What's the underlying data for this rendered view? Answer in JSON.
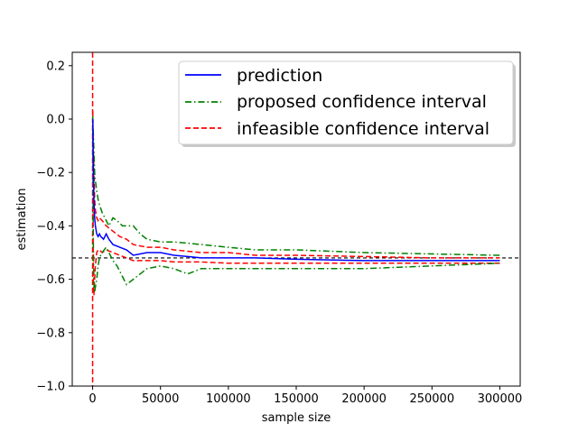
{
  "chart_data": {
    "type": "line",
    "title": "",
    "xlabel": "sample size",
    "ylabel": "estimation",
    "xlim": [
      -15000,
      315000
    ],
    "ylim": [
      -1.0,
      0.25
    ],
    "xticks": [
      0,
      50000,
      100000,
      150000,
      200000,
      250000,
      300000
    ],
    "xtick_labels": [
      "0",
      "50000",
      "100000",
      "150000",
      "200000",
      "250000",
      "300000"
    ],
    "yticks": [
      -1.0,
      -0.8,
      -0.6,
      -0.4,
      -0.2,
      0.0,
      0.2
    ],
    "ytick_labels": [
      "−1.0",
      "−0.8",
      "−0.6",
      "−0.4",
      "−0.2",
      "0.0",
      "0.2"
    ],
    "grid": false,
    "legend_position": "upper right",
    "colors": {
      "prediction": "#0000ff",
      "proposed": "#008000",
      "infeasible": "#ff0000",
      "reference": "#000000"
    },
    "reference_line": {
      "y": -0.52
    },
    "vertical_line": {
      "x": 0
    },
    "series": [
      {
        "name": "prediction",
        "style": "solid",
        "x": [
          100,
          500,
          1000,
          1500,
          2000,
          3000,
          4000,
          5000,
          6000,
          8000,
          10000,
          12000,
          15000,
          20000,
          25000,
          30000,
          35000,
          40000,
          50000,
          60000,
          70000,
          80000,
          90000,
          100000,
          120000,
          150000,
          200000,
          250000,
          300000
        ],
        "values": [
          0.0,
          -0.15,
          -0.3,
          -0.37,
          -0.4,
          -0.43,
          -0.44,
          -0.43,
          -0.44,
          -0.45,
          -0.43,
          -0.45,
          -0.47,
          -0.48,
          -0.49,
          -0.51,
          -0.505,
          -0.5,
          -0.5,
          -0.51,
          -0.515,
          -0.52,
          -0.52,
          -0.52,
          -0.52,
          -0.525,
          -0.53,
          -0.53,
          -0.53
        ]
      },
      {
        "name": "proposed confidence interval",
        "style": "dashdot",
        "upper": {
          "x": [
            100,
            500,
            1000,
            1500,
            2000,
            3000,
            4000,
            5000,
            7000,
            10000,
            12000,
            15000,
            18000,
            22000,
            25000,
            30000,
            35000,
            40000,
            50000,
            60000,
            70000,
            80000,
            100000,
            120000,
            150000,
            200000,
            250000,
            300000
          ],
          "values": [
            0.01,
            -0.05,
            -0.12,
            -0.2,
            -0.23,
            -0.27,
            -0.3,
            -0.32,
            -0.35,
            -0.38,
            -0.4,
            -0.37,
            -0.38,
            -0.4,
            -0.4,
            -0.4,
            -0.43,
            -0.45,
            -0.46,
            -0.46,
            -0.465,
            -0.47,
            -0.48,
            -0.49,
            -0.49,
            -0.5,
            -0.505,
            -0.51
          ]
        },
        "lower": {
          "x": [
            100,
            500,
            1000,
            1500,
            2000,
            3000,
            4000,
            5000,
            7000,
            10000,
            12000,
            15000,
            18000,
            22000,
            25000,
            30000,
            35000,
            40000,
            50000,
            60000,
            70000,
            80000,
            100000,
            120000,
            150000,
            200000,
            250000,
            300000
          ],
          "values": [
            -0.02,
            -0.45,
            -0.62,
            -0.65,
            -0.63,
            -0.6,
            -0.55,
            -0.52,
            -0.5,
            -0.48,
            -0.5,
            -0.53,
            -0.55,
            -0.59,
            -0.62,
            -0.6,
            -0.58,
            -0.56,
            -0.55,
            -0.56,
            -0.58,
            -0.56,
            -0.56,
            -0.56,
            -0.56,
            -0.56,
            -0.55,
            -0.54
          ]
        }
      },
      {
        "name": "infeasible confidence interval",
        "style": "dashed",
        "upper": {
          "x": [
            100,
            500,
            1000,
            1500,
            2000,
            3000,
            4000,
            5000,
            7000,
            10000,
            15000,
            20000,
            25000,
            30000,
            40000,
            50000,
            60000,
            80000,
            100000,
            120000,
            150000,
            200000,
            250000,
            300000
          ],
          "values": [
            0.03,
            -0.1,
            -0.2,
            -0.3,
            -0.34,
            -0.37,
            -0.38,
            -0.37,
            -0.38,
            -0.4,
            -0.42,
            -0.44,
            -0.45,
            -0.47,
            -0.48,
            -0.48,
            -0.49,
            -0.5,
            -0.5,
            -0.51,
            -0.51,
            -0.515,
            -0.52,
            -0.52
          ]
        },
        "lower": {
          "x": [
            100,
            500,
            1000,
            1500,
            2000,
            3000,
            4000,
            5000,
            7000,
            10000,
            15000,
            20000,
            25000,
            30000,
            40000,
            50000,
            60000,
            80000,
            100000,
            120000,
            150000,
            200000,
            250000,
            300000
          ],
          "values": [
            -0.05,
            -0.6,
            -0.66,
            -0.6,
            -0.55,
            -0.5,
            -0.49,
            -0.49,
            -0.5,
            -0.49,
            -0.5,
            -0.51,
            -0.52,
            -0.53,
            -0.53,
            -0.53,
            -0.535,
            -0.535,
            -0.54,
            -0.54,
            -0.54,
            -0.54,
            -0.54,
            -0.54
          ]
        }
      }
    ]
  }
}
